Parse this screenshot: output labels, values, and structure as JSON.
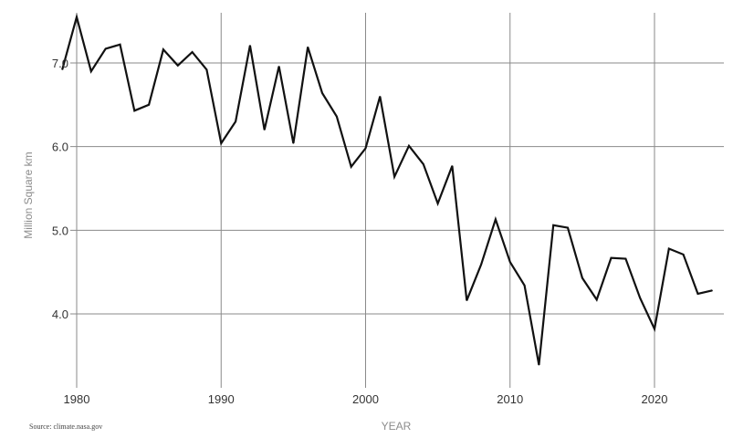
{
  "chart_data": {
    "type": "line",
    "title": "",
    "xlabel": "YEAR",
    "ylabel": "Million Square km",
    "source": "Source: climate.nasa.gov",
    "xlim": [
      1980,
      2025
    ],
    "ylim": [
      3.2,
      7.6
    ],
    "xticks": [
      1980,
      1990,
      2000,
      2010,
      2020
    ],
    "yticks": [
      4.0,
      5.0,
      6.0,
      7.0
    ],
    "xtick_labels": [
      "1980",
      "1990",
      "2000",
      "2010",
      "2020"
    ],
    "ytick_labels": [
      "4.0",
      "5.0",
      "6.0",
      "7.0"
    ],
    "grid": true,
    "legend": "none",
    "line_color": "#111111",
    "series": [
      {
        "x": [
          1979,
          1980,
          1981,
          1982,
          1983,
          1984,
          1985,
          1986,
          1987,
          1988,
          1989,
          1990,
          1991,
          1992,
          1993,
          1994,
          1995,
          1996,
          1997,
          1998,
          1999,
          2000,
          2001,
          2002,
          2003,
          2004,
          2005,
          2006,
          2007,
          2008,
          2009,
          2010,
          2011,
          2012,
          2013,
          2014,
          2015,
          2016,
          2017,
          2018,
          2019,
          2020,
          2021,
          2022,
          2023,
          2024
        ],
        "values": [
          6.92,
          7.55,
          6.9,
          7.17,
          7.22,
          6.43,
          6.5,
          7.16,
          6.97,
          7.13,
          6.92,
          6.04,
          6.3,
          7.21,
          6.2,
          6.96,
          6.04,
          7.19,
          6.64,
          6.36,
          5.76,
          5.98,
          6.6,
          5.64,
          6.01,
          5.79,
          5.32,
          5.77,
          4.16,
          4.59,
          5.13,
          4.62,
          4.34,
          3.39,
          5.06,
          5.03,
          4.43,
          4.17,
          4.67,
          4.66,
          4.19,
          3.82,
          4.78,
          4.71,
          4.24,
          4.28
        ]
      }
    ]
  }
}
